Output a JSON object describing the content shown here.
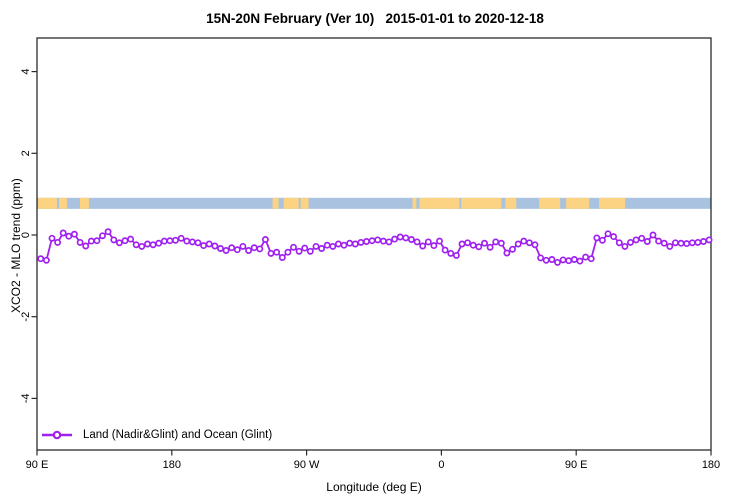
{
  "title": "15N-20N February (Ver 10)   2015-01-01 to 2020-12-18",
  "chart_data": {
    "type": "line",
    "title": "15N-20N February (Ver 10)   2015-01-01 to 2020-12-18",
    "xlabel": "Longitude (deg E)",
    "ylabel": "XCO2 - MLO trend (ppm)",
    "ylim": [
      -5.3,
      4.8
    ],
    "x_axis_deg_east_range": [
      90,
      540
    ],
    "grid": "off",
    "x_ticks": [
      {
        "lon": 90,
        "label": "90 E"
      },
      {
        "lon": 180,
        "label": "180"
      },
      {
        "lon": 270,
        "label": "90 W"
      },
      {
        "lon": 360,
        "label": "0"
      },
      {
        "lon": 450,
        "label": "90 E"
      },
      {
        "lon": 540,
        "label": "180"
      }
    ],
    "y_ticks": [
      {
        "v": 4,
        "label": "4"
      },
      {
        "v": 2,
        "label": "2"
      },
      {
        "v": 0,
        "label": "0"
      },
      {
        "v": -2,
        "label": "-2"
      },
      {
        "v": -4,
        "label": "-4"
      }
    ],
    "surface_band": {
      "description": "land/ocean strip along longitude",
      "y_range": [
        0.64,
        0.91
      ],
      "ocean_color": "#a9c2e0",
      "land_color": "#fbd382",
      "land_segments_deg_east": [
        [
          90.7,
          103.3
        ],
        [
          104.7,
          110.0
        ],
        [
          118.7,
          124.7
        ],
        [
          247.3,
          251.3
        ],
        [
          254.7,
          264.7
        ],
        [
          266.0,
          271.3
        ],
        [
          340.7,
          343.3
        ],
        [
          345.3,
          372.0
        ],
        [
          373.3,
          400.0
        ],
        [
          402.7,
          410.0
        ],
        [
          425.3,
          439.3
        ],
        [
          443.3,
          458.7
        ],
        [
          465.3,
          482.7
        ]
      ]
    },
    "legend": {
      "position": "bottom-left"
    },
    "series": [
      {
        "name": "Land (Nadir&Glint) and Ocean (Glint)",
        "color": "#a020f0",
        "marker": "open-circle",
        "lon_start_deg_east": 92.5,
        "lon_step_deg": 3.75,
        "values": [
          -0.58,
          -0.62,
          -0.08,
          -0.18,
          0.05,
          -0.03,
          0.02,
          -0.18,
          -0.27,
          -0.15,
          -0.14,
          -0.02,
          0.08,
          -0.12,
          -0.19,
          -0.14,
          -0.1,
          -0.24,
          -0.28,
          -0.22,
          -0.24,
          -0.2,
          -0.15,
          -0.14,
          -0.13,
          -0.08,
          -0.15,
          -0.17,
          -0.19,
          -0.26,
          -0.22,
          -0.27,
          -0.33,
          -0.38,
          -0.31,
          -0.36,
          -0.28,
          -0.38,
          -0.31,
          -0.34,
          -0.11,
          -0.45,
          -0.42,
          -0.55,
          -0.42,
          -0.3,
          -0.4,
          -0.32,
          -0.4,
          -0.28,
          -0.33,
          -0.25,
          -0.28,
          -0.22,
          -0.25,
          -0.2,
          -0.22,
          -0.18,
          -0.16,
          -0.14,
          -0.12,
          -0.15,
          -0.17,
          -0.1,
          -0.05,
          -0.07,
          -0.11,
          -0.17,
          -0.27,
          -0.17,
          -0.26,
          -0.15,
          -0.37,
          -0.45,
          -0.5,
          -0.22,
          -0.19,
          -0.25,
          -0.29,
          -0.2,
          -0.3,
          -0.17,
          -0.2,
          -0.44,
          -0.35,
          -0.22,
          -0.15,
          -0.19,
          -0.24,
          -0.56,
          -0.62,
          -0.6,
          -0.67,
          -0.61,
          -0.63,
          -0.6,
          -0.64,
          -0.54,
          -0.58,
          -0.07,
          -0.13,
          0.03,
          -0.04,
          -0.19,
          -0.28,
          -0.18,
          -0.12,
          -0.08,
          -0.16,
          0.0,
          -0.15,
          -0.2,
          -0.28,
          -0.19,
          -0.2,
          -0.21,
          -0.19,
          -0.18,
          -0.16,
          -0.12
        ]
      }
    ]
  }
}
